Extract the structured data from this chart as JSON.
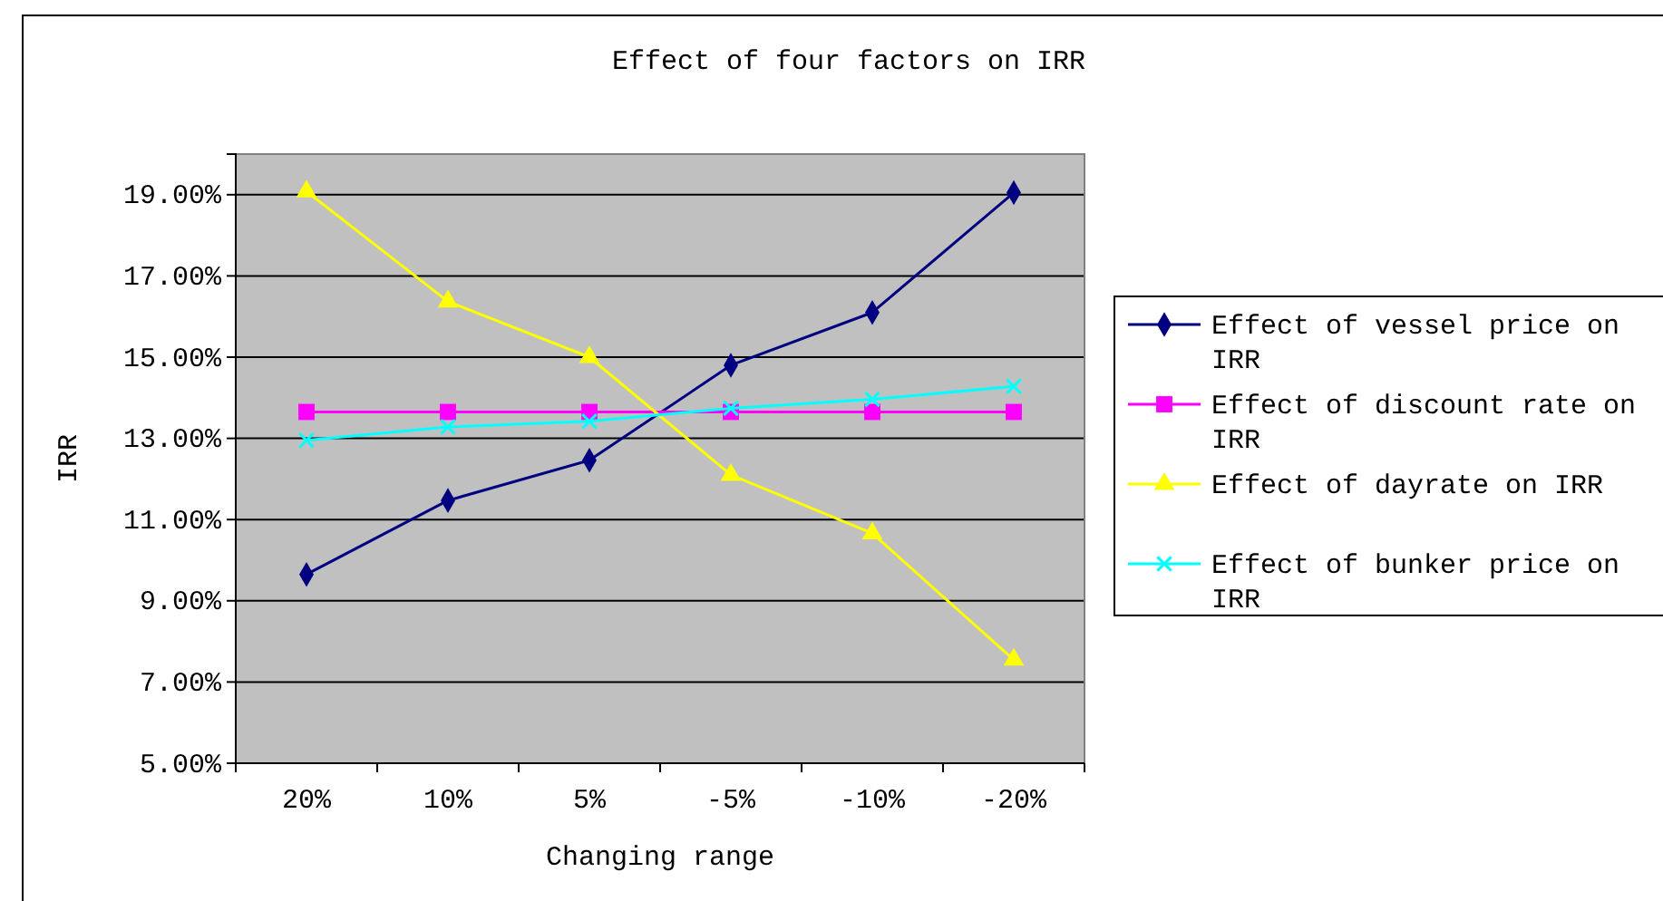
{
  "chart_data": {
    "type": "line",
    "title": "Effect of four factors on IRR",
    "xlabel": "Changing range",
    "ylabel": "IRR",
    "categories": [
      "20%",
      "10%",
      "5%",
      "-5%",
      "-10%",
      "-20%"
    ],
    "series": [
      {
        "name": "Effect of vessel price on IRR",
        "color": "#000080",
        "marker": "diamond",
        "values": [
          9.65,
          11.47,
          12.46,
          14.8,
          16.1,
          19.05
        ]
      },
      {
        "name": "Effect of discount rate on IRR",
        "color": "#ff00ff",
        "marker": "square",
        "values": [
          13.65,
          13.65,
          13.65,
          13.65,
          13.65,
          13.65
        ]
      },
      {
        "name": "Effect of dayrate on IRR",
        "color": "#ffff00",
        "marker": "triangle",
        "values": [
          19.08,
          16.37,
          15.0,
          12.1,
          10.66,
          7.55
        ]
      },
      {
        "name": "Effect of bunker price on IRR",
        "color": "#00ffff",
        "marker": "cross",
        "values": [
          12.95,
          13.28,
          13.42,
          13.74,
          13.96,
          14.28
        ]
      }
    ],
    "ylim": [
      5,
      20
    ],
    "yticks": [
      {
        "value": 5,
        "label": "5.00%"
      },
      {
        "value": 7,
        "label": "7.00%"
      },
      {
        "value": 9,
        "label": "9.00%"
      },
      {
        "value": 11,
        "label": "11.00%"
      },
      {
        "value": 13,
        "label": "13.00%"
      },
      {
        "value": 15,
        "label": "15.00%"
      },
      {
        "value": 17,
        "label": "17.00%"
      },
      {
        "value": 19,
        "label": "19.00%"
      }
    ],
    "grid": "y",
    "legend": "right"
  }
}
